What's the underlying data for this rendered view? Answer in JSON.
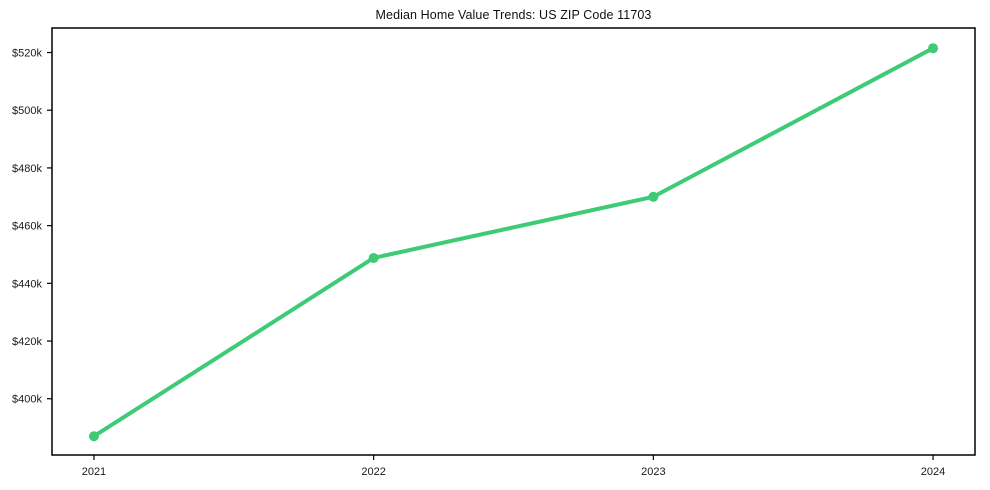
{
  "chart_data": {
    "type": "line",
    "title": "Median Home Value Trends: US ZIP Code 11703",
    "series": [
      {
        "name": "Median Home Value",
        "x": [
          2021,
          2022,
          2023,
          2024
        ],
        "values": [
          387000,
          448800,
          470000,
          521500
        ]
      }
    ],
    "xtick_labels": [
      "2021",
      "2022",
      "2023",
      "2024"
    ],
    "yticks": [
      400000,
      420000,
      440000,
      460000,
      480000,
      500000,
      520000
    ],
    "ytick_labels": [
      "$400k",
      "$420k",
      "$440k",
      "$460k",
      "$480k",
      "$500k",
      "$520k"
    ],
    "ylim": [
      380500,
      528500
    ],
    "xlabel": "",
    "ylabel": "",
    "grid": false,
    "legend_position": "none",
    "line_color": "#3ecb76",
    "marker_style": "circle",
    "axis_color": "#000000",
    "text_color": "#1a1a1a"
  }
}
